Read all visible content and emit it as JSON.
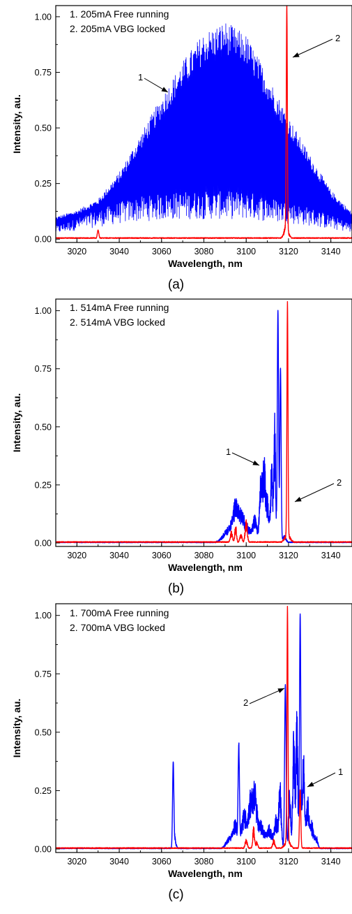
{
  "chart_data": [
    {
      "type": "line",
      "panel_label": "(a)",
      "xlabel": "Wavelength, nm",
      "ylabel": "Intensity, au.",
      "xlim": [
        3010,
        3150
      ],
      "ylim": [
        -0.015,
        1.05
      ],
      "x_ticks": [
        3020,
        3040,
        3060,
        3080,
        3100,
        3120,
        3140
      ],
      "y_ticks": [
        0.0,
        0.25,
        0.5,
        0.75,
        1.0
      ],
      "legend_position": "top-left",
      "legend": [
        "1. 205mA  Free running",
        "2. 205mA  VBG locked"
      ],
      "annotations": [
        {
          "text": "1",
          "x": 3066,
          "y": 0.66
        },
        {
          "text": "2",
          "x": 3121,
          "y": 0.97
        }
      ],
      "series": [
        {
          "name": "1. 205mA  Free running",
          "color": "#0000ff",
          "style": "dense-modes",
          "x": [
            3010,
            3020,
            3030,
            3040,
            3050,
            3060,
            3070,
            3080,
            3090,
            3100,
            3110,
            3120,
            3130,
            3140,
            3150
          ],
          "upper": [
            0.1,
            0.13,
            0.18,
            0.3,
            0.47,
            0.64,
            0.8,
            0.93,
            0.98,
            0.92,
            0.74,
            0.55,
            0.38,
            0.22,
            0.12
          ],
          "lower": [
            0.05,
            0.08,
            0.11,
            0.14,
            0.16,
            0.17,
            0.18,
            0.18,
            0.18,
            0.18,
            0.16,
            0.14,
            0.12,
            0.09,
            0.06
          ]
        },
        {
          "name": "2. 205mA  VBG locked",
          "color": "#ff0000",
          "style": "spectrum",
          "baseline": 0.005,
          "peaks": [
            {
              "x": 3119.2,
              "y": 1.0,
              "w": 0.25
            },
            {
              "x": 3118.9,
              "y": 0.06,
              "w": 1.0
            },
            {
              "x": 3030,
              "y": 0.035,
              "w": 0.35
            }
          ]
        }
      ]
    },
    {
      "type": "line",
      "panel_label": "(b)",
      "xlabel": "Wavelength, nm",
      "ylabel": "Intensity, au.",
      "xlim": [
        3010,
        3150
      ],
      "ylim": [
        -0.015,
        1.05
      ],
      "x_ticks": [
        3020,
        3040,
        3060,
        3080,
        3100,
        3120,
        3140
      ],
      "y_ticks": [
        0.0,
        0.25,
        0.5,
        0.75,
        1.0
      ],
      "legend_position": "top-left",
      "legend": [
        "1. 514mA  Free running",
        "2. 514mA  VBG locked"
      ],
      "annotations": [
        {
          "text": "1",
          "x": 3100,
          "y": 0.43
        },
        {
          "text": "2",
          "x": 3130,
          "y": 0.82
        }
      ],
      "series": [
        {
          "name": "1. 514mA  Free running",
          "color": "#0000ff",
          "style": "spectrum",
          "baseline": 0.003,
          "peaks": [
            {
              "x": 3092,
              "y": 0.07,
              "w": 2.5
            },
            {
              "x": 3095,
              "y": 0.16,
              "w": 1.3
            },
            {
              "x": 3098,
              "y": 0.14,
              "w": 1.3
            },
            {
              "x": 3101,
              "y": 0.07,
              "w": 1.2
            },
            {
              "x": 3104,
              "y": 0.12,
              "w": 1.0
            },
            {
              "x": 3107,
              "y": 0.3,
              "w": 0.7
            },
            {
              "x": 3108.5,
              "y": 0.37,
              "w": 0.6
            },
            {
              "x": 3110,
              "y": 0.2,
              "w": 0.6
            },
            {
              "x": 3112,
              "y": 0.35,
              "w": 0.6
            },
            {
              "x": 3113.5,
              "y": 0.55,
              "w": 0.4
            },
            {
              "x": 3115,
              "y": 1.0,
              "w": 0.3
            },
            {
              "x": 3116.2,
              "y": 0.75,
              "w": 0.3
            },
            {
              "x": 3118,
              "y": 0.03,
              "w": 0.8
            }
          ]
        },
        {
          "name": "2. 514mA  VBG locked",
          "color": "#ff0000",
          "style": "spectrum",
          "baseline": 0.004,
          "peaks": [
            {
              "x": 3119.5,
              "y": 1.0,
              "w": 0.25
            },
            {
              "x": 3093,
              "y": 0.05,
              "w": 0.5
            },
            {
              "x": 3095,
              "y": 0.08,
              "w": 0.4
            },
            {
              "x": 3097.5,
              "y": 0.04,
              "w": 0.5
            },
            {
              "x": 3100,
              "y": 0.1,
              "w": 0.5
            },
            {
              "x": 3119.5,
              "y": 0.04,
              "w": 1.2
            }
          ]
        }
      ]
    },
    {
      "type": "line",
      "panel_label": "(c)",
      "xlabel": "Wavelength, nm",
      "ylabel": "Intensity, au.",
      "xlim": [
        3010,
        3150
      ],
      "ylim": [
        -0.015,
        1.05
      ],
      "x_ticks": [
        3020,
        3040,
        3060,
        3080,
        3100,
        3120,
        3140
      ],
      "y_ticks": [
        0.0,
        0.25,
        0.5,
        0.75,
        1.0
      ],
      "legend_position": "top-left",
      "legend": [
        "1. 700mA  Free running",
        "2. 700mA  VBG locked"
      ],
      "annotations": [
        {
          "text": "2",
          "x": 3104,
          "y": 0.87
        },
        {
          "text": "1",
          "x": 3138,
          "y": 0.6
        }
      ],
      "series": [
        {
          "name": "1. 700mA  Free running",
          "color": "#0000ff",
          "style": "spectrum",
          "baseline": 0.003,
          "peaks": [
            {
              "x": 3065.5,
              "y": 0.35,
              "w": 0.3
            },
            {
              "x": 3066.2,
              "y": 0.05,
              "w": 0.6
            },
            {
              "x": 3092,
              "y": 0.05,
              "w": 1.5
            },
            {
              "x": 3095,
              "y": 0.12,
              "w": 1.2
            },
            {
              "x": 3096.5,
              "y": 0.39,
              "w": 0.3
            },
            {
              "x": 3099,
              "y": 0.18,
              "w": 1.2
            },
            {
              "x": 3102,
              "y": 0.22,
              "w": 1.0
            },
            {
              "x": 3104,
              "y": 0.26,
              "w": 1.0
            },
            {
              "x": 3107,
              "y": 0.12,
              "w": 1.5
            },
            {
              "x": 3111,
              "y": 0.1,
              "w": 1.2
            },
            {
              "x": 3114,
              "y": 0.14,
              "w": 0.8
            },
            {
              "x": 3116,
              "y": 0.3,
              "w": 0.6
            },
            {
              "x": 3118.5,
              "y": 0.7,
              "w": 0.35
            },
            {
              "x": 3120.5,
              "y": 0.28,
              "w": 0.5
            },
            {
              "x": 3122.5,
              "y": 0.55,
              "w": 0.5
            },
            {
              "x": 3124,
              "y": 0.7,
              "w": 0.4
            },
            {
              "x": 3125.5,
              "y": 1.0,
              "w": 0.3
            },
            {
              "x": 3127,
              "y": 0.45,
              "w": 0.5
            },
            {
              "x": 3129,
              "y": 0.25,
              "w": 0.7
            },
            {
              "x": 3131,
              "y": 0.12,
              "w": 0.7
            },
            {
              "x": 3133,
              "y": 0.06,
              "w": 0.7
            }
          ]
        },
        {
          "name": "2. 700mA  VBG locked",
          "color": "#ff0000",
          "style": "spectrum",
          "baseline": 0.004,
          "peaks": [
            {
              "x": 3119.5,
              "y": 1.0,
              "w": 0.25
            },
            {
              "x": 3125.5,
              "y": 0.25,
              "w": 0.3
            },
            {
              "x": 3100,
              "y": 0.04,
              "w": 0.5
            },
            {
              "x": 3103.5,
              "y": 0.1,
              "w": 0.4
            },
            {
              "x": 3105,
              "y": 0.03,
              "w": 0.5
            },
            {
              "x": 3113,
              "y": 0.04,
              "w": 0.5
            },
            {
              "x": 3119.5,
              "y": 0.04,
              "w": 1.2
            }
          ]
        }
      ]
    }
  ]
}
